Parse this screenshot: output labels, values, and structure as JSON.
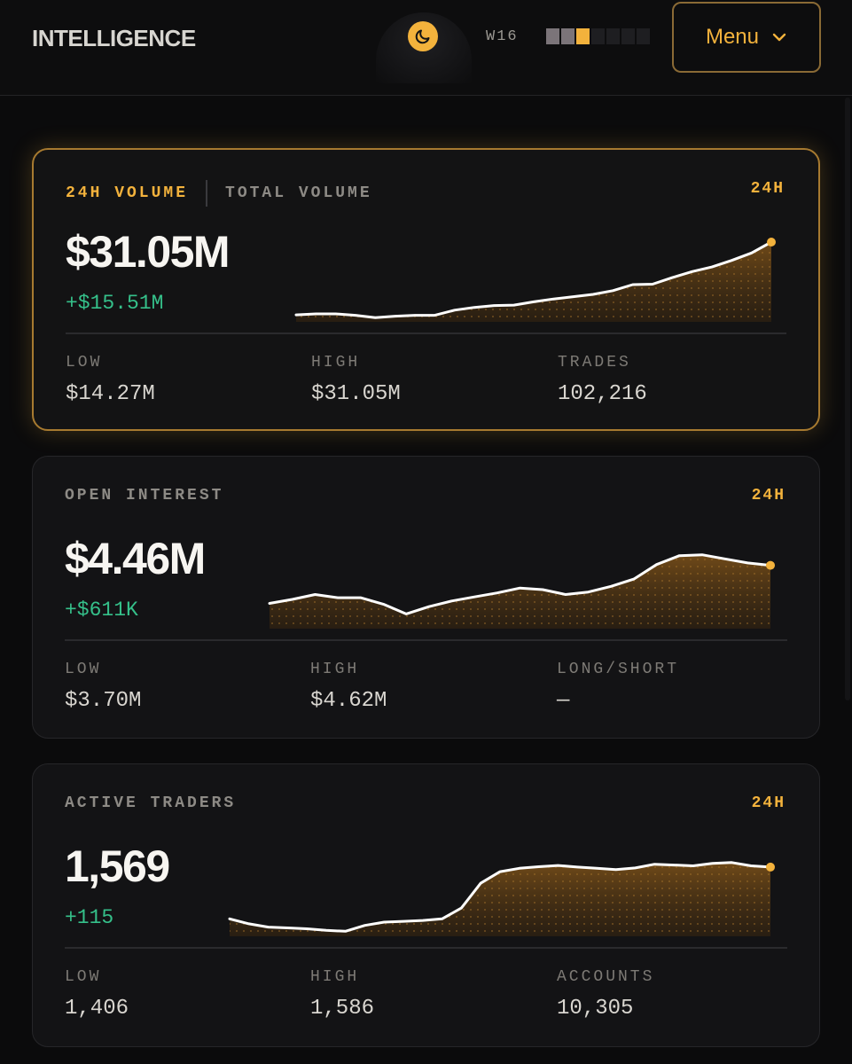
{
  "header": {
    "logo": "INTELLIGENCE",
    "week_label": "W16",
    "week_segments": [
      "past",
      "past",
      "cur",
      "none",
      "none",
      "none",
      "none"
    ],
    "menu_label": "Menu",
    "accent_color": "#f3b23c"
  },
  "cards": [
    {
      "tabs": [
        {
          "label": "24H VOLUME",
          "active": true
        },
        {
          "label": "TOTAL VOLUME",
          "active": false
        }
      ],
      "period": "24H",
      "value": "$31.05M",
      "delta": "+$15.51M",
      "stats": [
        {
          "label": "LOW",
          "value": "$14.27M"
        },
        {
          "label": "HIGH",
          "value": "$31.05M"
        },
        {
          "label": "TRADES",
          "value": "102,216"
        }
      ]
    },
    {
      "title": "OPEN INTEREST",
      "period": "24H",
      "value": "$4.46M",
      "delta": "+$611K",
      "stats": [
        {
          "label": "LOW",
          "value": "$3.70M"
        },
        {
          "label": "HIGH",
          "value": "$4.62M"
        },
        {
          "label": "LONG/SHORT",
          "value": "—"
        }
      ]
    },
    {
      "title": "ACTIVE TRADERS",
      "period": "24H",
      "value": "1,569",
      "delta": "+115",
      "stats": [
        {
          "label": "LOW",
          "value": "1,406"
        },
        {
          "label": "HIGH",
          "value": "1,586"
        },
        {
          "label": "ACCOUNTS",
          "value": "10,305"
        }
      ]
    }
  ],
  "chart_data": [
    {
      "type": "area",
      "series": [
        {
          "values": [
            15.4,
            15.6,
            15.6,
            15.3,
            14.8,
            15.1,
            15.3,
            15.3,
            16.4,
            17.0,
            17.4,
            17.5,
            18.2,
            18.8,
            19.3,
            19.8,
            20.6,
            21.9,
            22.0,
            23.4,
            24.7,
            25.7,
            27.1,
            28.7,
            31.05
          ]
        }
      ],
      "ylim": [
        14.27,
        31.05
      ]
    },
    {
      "type": "area",
      "series": [
        {
          "values": [
            3.99,
            4.04,
            4.1,
            4.06,
            4.06,
            3.98,
            3.86,
            3.95,
            4.02,
            4.07,
            4.12,
            4.18,
            4.16,
            4.1,
            4.13,
            4.2,
            4.29,
            4.47,
            4.58,
            4.59,
            4.54,
            4.49,
            4.46
          ]
        }
      ],
      "ylim": [
        3.7,
        4.62
      ]
    },
    {
      "type": "area",
      "series": [
        {
          "values": [
            1444,
            1432,
            1424,
            1422,
            1420,
            1416,
            1414,
            1428,
            1436,
            1438,
            1440,
            1444,
            1470,
            1530,
            1558,
            1566,
            1570,
            1573,
            1569,
            1566,
            1563,
            1567,
            1576,
            1574,
            1572,
            1578,
            1580,
            1572,
            1569
          ]
        }
      ],
      "ylim": [
        1406,
        1586
      ]
    }
  ]
}
